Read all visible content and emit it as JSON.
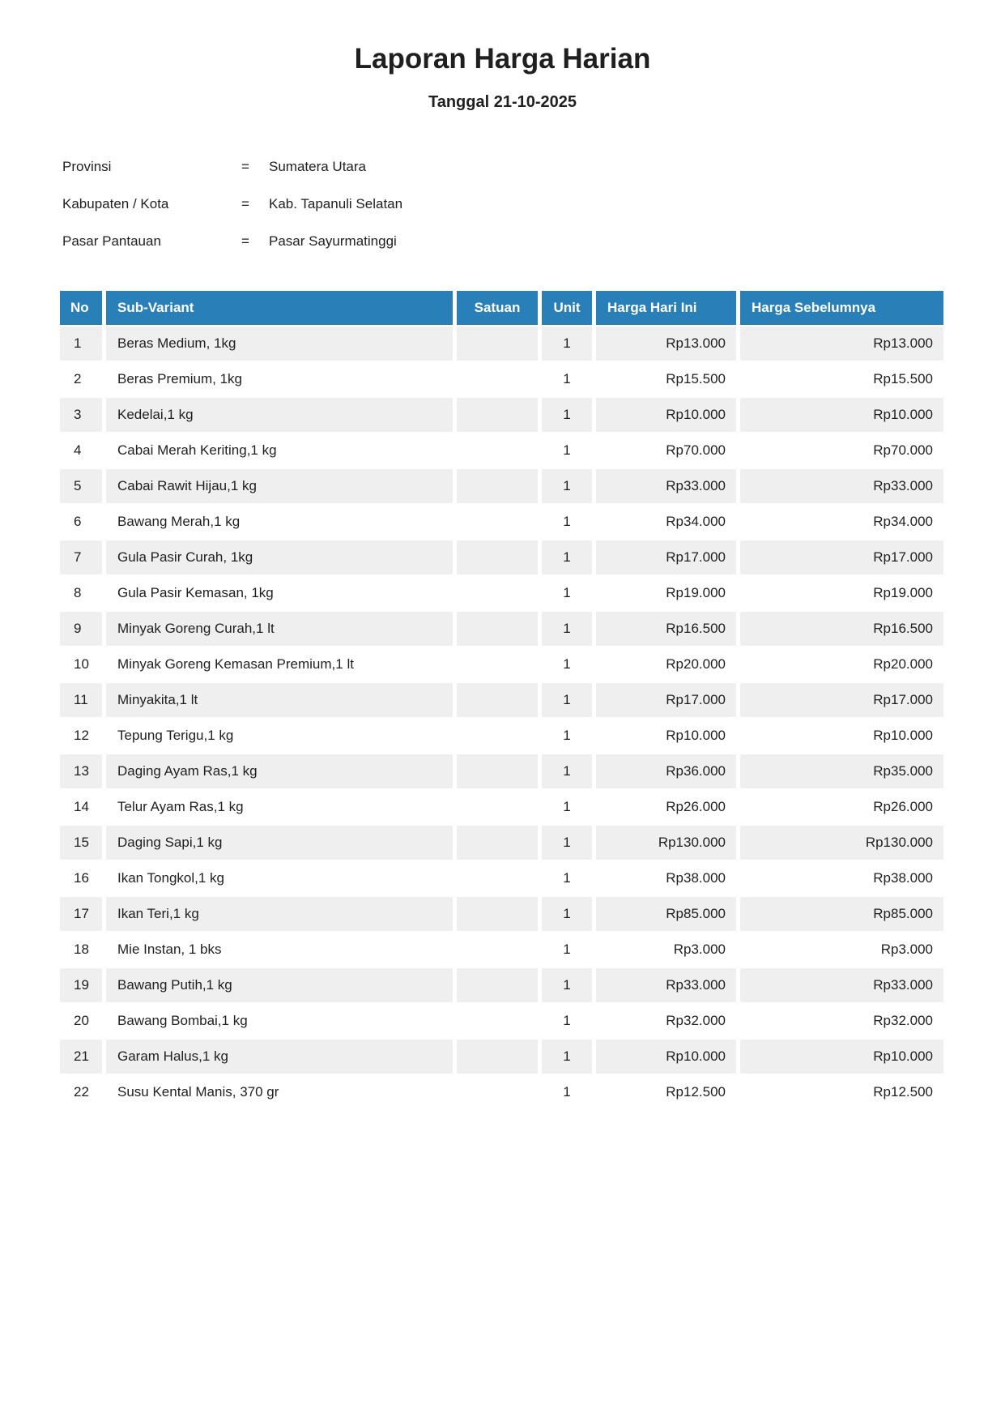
{
  "document": {
    "title": "Laporan Harga Harian",
    "subtitle": "Tanggal 21-10-2025"
  },
  "metadata": {
    "equals": "=",
    "rows": [
      {
        "label": "Provinsi",
        "value": "Sumatera Utara"
      },
      {
        "label": "Kabupaten / Kota",
        "value": "Kab. Tapanuli Selatan"
      },
      {
        "label": "Pasar Pantauan",
        "value": "Pasar Sayurmatinggi"
      }
    ]
  },
  "table": {
    "columns": [
      "No",
      "Sub-Variant",
      "Satuan",
      "Unit",
      "Harga Hari Ini",
      "Harga Sebelumnya"
    ],
    "rows": [
      {
        "no": 1,
        "sub_variant": "Beras Medium, 1kg",
        "satuan": "",
        "unit": 1,
        "harga_hari_ini": "Rp13.000",
        "harga_sebelumnya": "Rp13.000"
      },
      {
        "no": 2,
        "sub_variant": "Beras Premium, 1kg",
        "satuan": "",
        "unit": 1,
        "harga_hari_ini": "Rp15.500",
        "harga_sebelumnya": "Rp15.500"
      },
      {
        "no": 3,
        "sub_variant": "Kedelai,1 kg",
        "satuan": "",
        "unit": 1,
        "harga_hari_ini": "Rp10.000",
        "harga_sebelumnya": "Rp10.000"
      },
      {
        "no": 4,
        "sub_variant": "Cabai Merah Keriting,1 kg",
        "satuan": "",
        "unit": 1,
        "harga_hari_ini": "Rp70.000",
        "harga_sebelumnya": "Rp70.000"
      },
      {
        "no": 5,
        "sub_variant": "Cabai Rawit Hijau,1 kg",
        "satuan": "",
        "unit": 1,
        "harga_hari_ini": "Rp33.000",
        "harga_sebelumnya": "Rp33.000"
      },
      {
        "no": 6,
        "sub_variant": "Bawang Merah,1 kg",
        "satuan": "",
        "unit": 1,
        "harga_hari_ini": "Rp34.000",
        "harga_sebelumnya": "Rp34.000"
      },
      {
        "no": 7,
        "sub_variant": "Gula Pasir Curah, 1kg",
        "satuan": "",
        "unit": 1,
        "harga_hari_ini": "Rp17.000",
        "harga_sebelumnya": "Rp17.000"
      },
      {
        "no": 8,
        "sub_variant": "Gula Pasir Kemasan, 1kg",
        "satuan": "",
        "unit": 1,
        "harga_hari_ini": "Rp19.000",
        "harga_sebelumnya": "Rp19.000"
      },
      {
        "no": 9,
        "sub_variant": "Minyak Goreng Curah,1 lt",
        "satuan": "",
        "unit": 1,
        "harga_hari_ini": "Rp16.500",
        "harga_sebelumnya": "Rp16.500"
      },
      {
        "no": 10,
        "sub_variant": "Minyak Goreng Kemasan Premium,1 lt",
        "satuan": "",
        "unit": 1,
        "harga_hari_ini": "Rp20.000",
        "harga_sebelumnya": "Rp20.000"
      },
      {
        "no": 11,
        "sub_variant": "Minyakita,1 lt",
        "satuan": "",
        "unit": 1,
        "harga_hari_ini": "Rp17.000",
        "harga_sebelumnya": "Rp17.000"
      },
      {
        "no": 12,
        "sub_variant": "Tepung Terigu,1 kg",
        "satuan": "",
        "unit": 1,
        "harga_hari_ini": "Rp10.000",
        "harga_sebelumnya": "Rp10.000"
      },
      {
        "no": 13,
        "sub_variant": "Daging Ayam Ras,1 kg",
        "satuan": "",
        "unit": 1,
        "harga_hari_ini": "Rp36.000",
        "harga_sebelumnya": "Rp35.000"
      },
      {
        "no": 14,
        "sub_variant": "Telur Ayam Ras,1 kg",
        "satuan": "",
        "unit": 1,
        "harga_hari_ini": "Rp26.000",
        "harga_sebelumnya": "Rp26.000"
      },
      {
        "no": 15,
        "sub_variant": "Daging Sapi,1 kg",
        "satuan": "",
        "unit": 1,
        "harga_hari_ini": "Rp130.000",
        "harga_sebelumnya": "Rp130.000"
      },
      {
        "no": 16,
        "sub_variant": "Ikan Tongkol,1 kg",
        "satuan": "",
        "unit": 1,
        "harga_hari_ini": "Rp38.000",
        "harga_sebelumnya": "Rp38.000"
      },
      {
        "no": 17,
        "sub_variant": "Ikan Teri,1 kg",
        "satuan": "",
        "unit": 1,
        "harga_hari_ini": "Rp85.000",
        "harga_sebelumnya": "Rp85.000"
      },
      {
        "no": 18,
        "sub_variant": "Mie Instan, 1 bks",
        "satuan": "",
        "unit": 1,
        "harga_hari_ini": "Rp3.000",
        "harga_sebelumnya": "Rp3.000"
      },
      {
        "no": 19,
        "sub_variant": "Bawang Putih,1 kg",
        "satuan": "",
        "unit": 1,
        "harga_hari_ini": "Rp33.000",
        "harga_sebelumnya": "Rp33.000"
      },
      {
        "no": 20,
        "sub_variant": "Bawang Bombai,1 kg",
        "satuan": "",
        "unit": 1,
        "harga_hari_ini": "Rp32.000",
        "harga_sebelumnya": "Rp32.000"
      },
      {
        "no": 21,
        "sub_variant": "Garam Halus,1 kg",
        "satuan": "",
        "unit": 1,
        "harga_hari_ini": "Rp10.000",
        "harga_sebelumnya": "Rp10.000"
      },
      {
        "no": 22,
        "sub_variant": "Susu Kental Manis, 370 gr",
        "satuan": "",
        "unit": 1,
        "harga_hari_ini": "Rp12.500",
        "harga_sebelumnya": "Rp12.500"
      }
    ]
  },
  "colors": {
    "table_header_bg": "#2980b9",
    "table_header_text": "#ffffff",
    "row_alt_bg": "#efefef",
    "text": "#1f1f1f"
  }
}
